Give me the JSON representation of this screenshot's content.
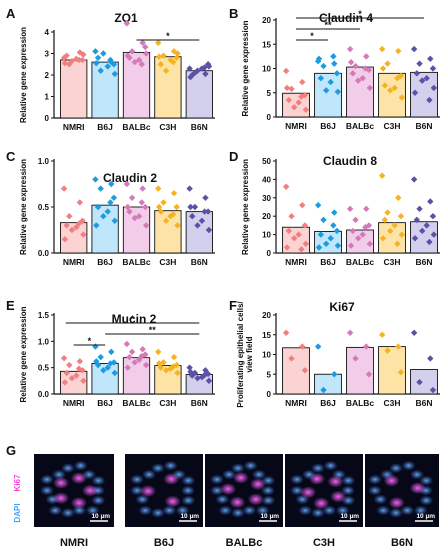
{
  "group_colors": [
    "#f08080",
    "#1b9be0",
    "#d47ab8",
    "#f5b324",
    "#5b52a6"
  ],
  "group_fills": [
    "#fbd3d3",
    "#bfe6fb",
    "#f2cdea",
    "#fde4a6",
    "#d3d0ee"
  ],
  "chart_data": [
    {
      "panel_label": "A",
      "type": "bar",
      "title": "ZO1",
      "ylabel": "Relative gene expression",
      "categories": [
        "NMRI",
        "B6J",
        "BALBc",
        "C3H",
        "B6N"
      ],
      "ylim": [
        0,
        4
      ],
      "yticks": [
        "0",
        "1",
        "2",
        "3",
        "4"
      ],
      "values": [
        2.7,
        2.6,
        3.05,
        2.85,
        2.2
      ],
      "points": [
        [
          2.8,
          3.05,
          2.5,
          2.7,
          2.9,
          2.75,
          2.65,
          2.95,
          2.55,
          2.7
        ],
        [
          3.1,
          2.6,
          2.2,
          2.5,
          2.8,
          2.4,
          3.0,
          2.05,
          2.55,
          2.7
        ],
        [
          4.4,
          3.5,
          3.1,
          3.3,
          2.8,
          2.7,
          2.6,
          3.0,
          2.9,
          2.5
        ],
        [
          3.5,
          3.1,
          2.9,
          2.8,
          2.5,
          2.7,
          2.2,
          3.0,
          2.85,
          2.6
        ],
        [
          2.3,
          2.05,
          2.1,
          2.5,
          2.0,
          2.3,
          2.2,
          2.4,
          1.9,
          2.35
        ]
      ],
      "significance": [
        {
          "from": 2,
          "to": 4,
          "label": "*"
        }
      ]
    },
    {
      "panel_label": "B",
      "type": "bar",
      "title": "Claudin 4",
      "ylabel": "Relative gene expression",
      "categories": [
        "NMRI",
        "B6J",
        "BALBc",
        "C3H",
        "B6N"
      ],
      "ylim": [
        0,
        20
      ],
      "yticks": [
        "0",
        "5",
        "10",
        "15",
        "20"
      ],
      "values": [
        4.9,
        9.0,
        10.3,
        9.0,
        9.2
      ],
      "points": [
        [
          9.5,
          7.2,
          5.8,
          4.5,
          3.5,
          3.0,
          2.0,
          1.5,
          6.0,
          4.2
        ],
        [
          11.5,
          11.0,
          10.5,
          9.0,
          8.0,
          7.2,
          5.5,
          5.2,
          12.0,
          12.5
        ],
        [
          14.0,
          12.5,
          10.5,
          9.7,
          9.0,
          8.0,
          7.5,
          6.0,
          11.3,
          10.0
        ],
        [
          14.0,
          13.6,
          11.0,
          8.5,
          6.5,
          6.0,
          5.5,
          4.0,
          10.0,
          8.0
        ],
        [
          14.0,
          12.0,
          11.0,
          10.0,
          9.0,
          8.0,
          7.5,
          6.0,
          5.0,
          3.5
        ]
      ],
      "significance": [
        {
          "from": 0,
          "to": 4,
          "label": "*"
        },
        {
          "from": 0,
          "to": 2,
          "label": "**"
        },
        {
          "from": 0,
          "to": 1,
          "label": "*"
        }
      ]
    },
    {
      "panel_label": "C",
      "type": "bar",
      "title": "Claudin 2",
      "ylabel": "Relative gene expression",
      "categories": [
        "NMRI",
        "B6J",
        "BALBc",
        "C3H",
        "B6N"
      ],
      "ylim": [
        0,
        1.0
      ],
      "yticks": [
        "0.0",
        "0.5",
        "1.0"
      ],
      "values": [
        0.33,
        0.52,
        0.5,
        0.46,
        0.45
      ],
      "points": [
        [
          0.7,
          0.55,
          0.4,
          0.35,
          0.3,
          0.28,
          0.25,
          0.2,
          0.15,
          0.32
        ],
        [
          0.8,
          0.75,
          0.7,
          0.6,
          0.5,
          0.45,
          0.4,
          0.35,
          0.3,
          0.55
        ],
        [
          0.75,
          0.7,
          0.6,
          0.5,
          0.45,
          0.4,
          0.38,
          0.3,
          0.5,
          0.55
        ],
        [
          0.7,
          0.65,
          0.55,
          0.5,
          0.45,
          0.4,
          0.35,
          0.3,
          0.5,
          0.42
        ],
        [
          0.7,
          0.6,
          0.5,
          0.45,
          0.4,
          0.35,
          0.3,
          0.25,
          0.5,
          0.45
        ]
      ],
      "significance": []
    },
    {
      "panel_label": "D",
      "type": "bar",
      "title": "Claudin 8",
      "ylabel": "Relative gene expression",
      "categories": [
        "NMRI",
        "B6J",
        "BALBc",
        "C3H",
        "B6N"
      ],
      "ylim": [
        0,
        50
      ],
      "yticks": [
        "0",
        "10",
        "20",
        "30",
        "40",
        "50"
      ],
      "values": [
        14.0,
        11.7,
        12.5,
        16.5,
        17.0
      ],
      "points": [
        [
          36,
          26,
          20,
          15,
          12,
          10,
          8,
          5,
          3,
          2
        ],
        [
          26,
          22,
          18,
          12,
          10,
          8,
          5,
          4,
          3,
          15
        ],
        [
          24,
          24,
          18,
          15,
          12,
          10,
          8,
          5,
          4,
          14
        ],
        [
          42,
          30,
          22,
          20,
          18,
          15,
          12,
          10,
          8,
          5
        ],
        [
          40,
          28,
          24,
          20,
          18,
          15,
          12,
          10,
          8,
          6
        ]
      ],
      "significance": []
    },
    {
      "panel_label": "E",
      "type": "bar",
      "title": "Mucin 2",
      "ylabel": "Relative gene expression",
      "categories": [
        "NMRI",
        "B6J",
        "BALBc",
        "C3H",
        "B6N"
      ],
      "ylim": [
        0,
        1.5
      ],
      "yticks": [
        "0.0",
        "0.5",
        "1.0",
        "1.5"
      ],
      "values": [
        0.43,
        0.58,
        0.69,
        0.54,
        0.37
      ],
      "points": [
        [
          0.68,
          0.62,
          0.55,
          0.45,
          0.4,
          0.35,
          0.3,
          0.25,
          0.22,
          0.48
        ],
        [
          0.9,
          0.8,
          0.7,
          0.6,
          0.55,
          0.5,
          0.45,
          0.4,
          0.62,
          0.58
        ],
        [
          0.95,
          0.85,
          0.8,
          0.75,
          0.7,
          0.65,
          0.6,
          0.55,
          0.5,
          0.72
        ],
        [
          0.8,
          0.7,
          0.6,
          0.55,
          0.5,
          0.48,
          0.45,
          0.4,
          0.58,
          0.52
        ],
        [
          0.5,
          0.45,
          0.4,
          0.38,
          0.35,
          0.32,
          0.3,
          0.25,
          0.42,
          0.36
        ]
      ],
      "significance": [
        {
          "from": 0,
          "to": 4,
          "label": "*"
        },
        {
          "from": 1,
          "to": 4,
          "label": "**"
        },
        {
          "from": 0,
          "to": 1,
          "label": "*"
        }
      ]
    },
    {
      "panel_label": "F",
      "type": "bar",
      "title": "Ki67",
      "ylabel": "Proliferating epithelial cells/ view field",
      "categories": [
        "NMRI",
        "B6J",
        "BALBc",
        "C3H",
        "B6N"
      ],
      "ylim": [
        0,
        20
      ],
      "yticks": [
        "0",
        "5",
        "10",
        "15",
        "20"
      ],
      "values": [
        11.7,
        5.0,
        11.8,
        12.0,
        6.2
      ],
      "points": [
        [
          15.5,
          12,
          9,
          6
        ],
        [
          12,
          5,
          1,
          -1
        ],
        [
          15.5,
          12,
          9,
          5
        ],
        [
          15,
          12,
          11,
          5.5
        ],
        [
          15.5,
          9,
          3,
          1
        ]
      ],
      "significance": []
    }
  ],
  "micrographs": {
    "panel_label": "G",
    "stain_ki67": "Ki67",
    "stain_dapi": "DAPI",
    "scale_bar": "10 µm",
    "groups": [
      "NMRI",
      "B6J",
      "BALBc",
      "C3H",
      "B6N"
    ]
  }
}
